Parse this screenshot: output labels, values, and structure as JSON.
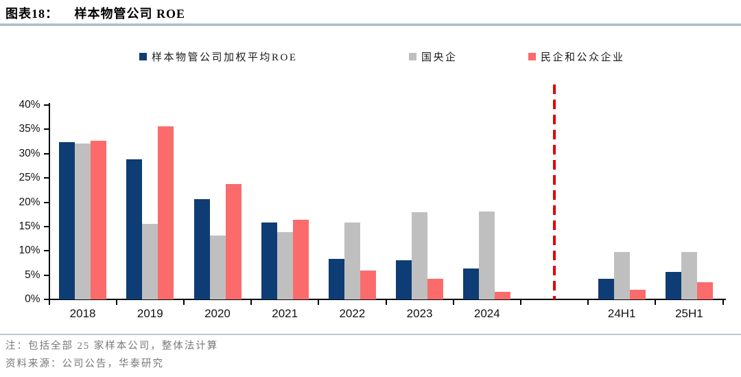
{
  "header": {
    "prefix": "图表18：",
    "title": "样本物管公司 ROE"
  },
  "legend": [
    {
      "label": "样本物管公司加权平均ROE",
      "color": "#0e3c74"
    },
    {
      "label": "国央企",
      "color": "#c0bfbf"
    },
    {
      "label": "民企和公众企业",
      "color": "#fb6b6b"
    }
  ],
  "chart_data": {
    "type": "bar",
    "title": "样本物管公司 ROE",
    "categories": [
      "2018",
      "2019",
      "2020",
      "2021",
      "2022",
      "2023",
      "2024",
      "",
      "24H1",
      "25H1"
    ],
    "series": [
      {
        "name": "样本物管公司加权平均ROE",
        "color": "#0e3c74",
        "values": [
          32.3,
          28.8,
          20.7,
          15.9,
          8.4,
          8.1,
          6.4,
          null,
          4.2,
          5.6
        ]
      },
      {
        "name": "国央企",
        "color": "#c0bfbf",
        "values": [
          32.1,
          15.6,
          13.2,
          13.9,
          15.9,
          17.9,
          18.1,
          null,
          9.8,
          9.8
        ]
      },
      {
        "name": "民企和公众企业",
        "color": "#fb6b6b",
        "values": [
          32.6,
          35.6,
          23.8,
          16.4,
          5.9,
          4.2,
          1.5,
          null,
          2.0,
          3.6
        ]
      }
    ],
    "xlabel": "",
    "ylabel": "",
    "ylim": [
      0,
      40
    ],
    "ytick_step": 5,
    "ytick_suffix": "%",
    "grid": false,
    "legend_position": "top",
    "annotation": {
      "type": "vline-dashed",
      "at_category_index": 7,
      "color": "#e60000"
    }
  },
  "footer": {
    "note": "注：包括全部 25 家样本公司，整体法计算",
    "source": "资料来源：公司公告，华泰研究"
  }
}
